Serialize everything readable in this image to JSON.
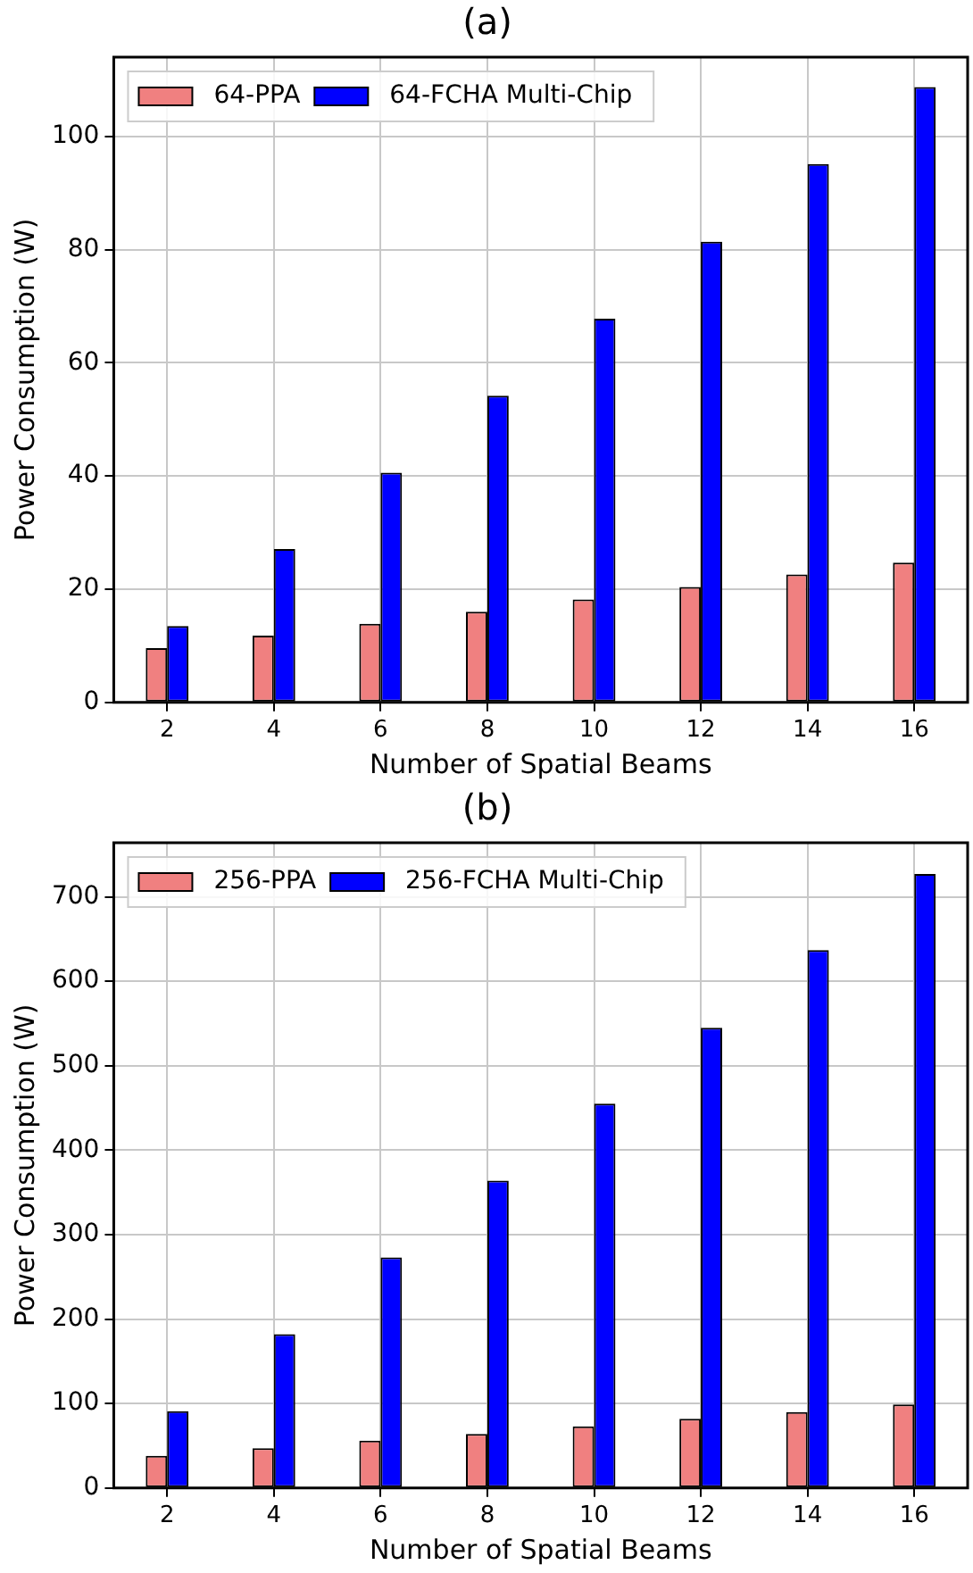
{
  "chart_data": [
    {
      "type": "bar",
      "title": "(a)",
      "xlabel": "Number of Spatial Beams",
      "ylabel": "Power Consumption (W)",
      "categories": [
        "2",
        "4",
        "6",
        "8",
        "10",
        "12",
        "14",
        "16"
      ],
      "series": [
        {
          "name": "64-PPA",
          "color": "#f08080",
          "values": [
            9.6,
            11.8,
            13.9,
            16.0,
            18.2,
            20.4,
            22.6,
            24.7
          ]
        },
        {
          "name": "64-FCHA Multi-Chip",
          "color": "#0000ff",
          "values": [
            13.5,
            27.1,
            40.6,
            54.2,
            67.8,
            81.4,
            95.1,
            108.7
          ]
        }
      ],
      "ylim": [
        0,
        114
      ],
      "yticks": [
        0,
        20,
        40,
        60,
        80,
        100
      ],
      "grid": true,
      "legend": "top left"
    },
    {
      "type": "bar",
      "title": "(b)",
      "xlabel": "Number of Spatial Beams",
      "ylabel": "Power Consumption (W)",
      "categories": [
        "2",
        "4",
        "6",
        "8",
        "10",
        "12",
        "14",
        "16"
      ],
      "series": [
        {
          "name": "256-PPA",
          "color": "#f08080",
          "values": [
            38,
            47,
            56,
            64,
            73,
            82,
            90,
            99
          ]
        },
        {
          "name": "256-FCHA Multi-Chip",
          "color": "#0000ff",
          "values": [
            91,
            182,
            273,
            364,
            455,
            545,
            637,
            727
          ]
        }
      ],
      "ylim": [
        0,
        764
      ],
      "yticks": [
        0,
        100,
        200,
        300,
        400,
        500,
        600,
        700
      ],
      "grid": true,
      "legend": "top left"
    }
  ]
}
